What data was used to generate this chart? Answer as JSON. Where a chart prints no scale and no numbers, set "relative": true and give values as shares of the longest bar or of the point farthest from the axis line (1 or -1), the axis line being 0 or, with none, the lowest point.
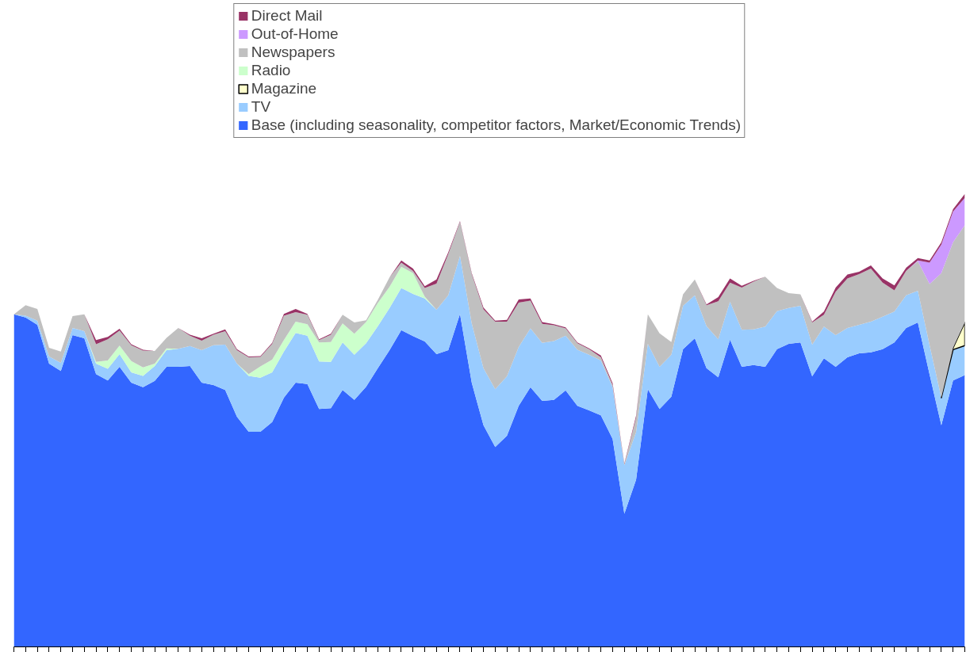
{
  "chart_data": {
    "type": "area",
    "stacked": true,
    "relative": true,
    "legend": "top",
    "grid": false,
    "categories": [
      null,
      null,
      null,
      null,
      null,
      null,
      null,
      null,
      null,
      null,
      null,
      null,
      null,
      null,
      null,
      null,
      null,
      null,
      null,
      null,
      null,
      null,
      null,
      null,
      null,
      null,
      null,
      null,
      null,
      null,
      null,
      null,
      null,
      null,
      null,
      null,
      null,
      null,
      null,
      null,
      null,
      null,
      null,
      null,
      null,
      null,
      null,
      null,
      null,
      null,
      null,
      null,
      null,
      null,
      null,
      null,
      null,
      null,
      null,
      null,
      null,
      null,
      null,
      null,
      null,
      null,
      null,
      null,
      null,
      null,
      null,
      null,
      null,
      null,
      null,
      null,
      null,
      null,
      null,
      null,
      null,
      null
    ],
    "series": [
      {
        "name": "Base (including seasonality, competitor factors, Market/Economic Trends)",
        "color": "#3366ff",
        "values": [
          0.734,
          0.727,
          0.711,
          0.625,
          0.609,
          0.688,
          0.681,
          0.602,
          0.588,
          0.618,
          0.583,
          0.573,
          0.587,
          0.618,
          0.618,
          0.62,
          0.583,
          0.578,
          0.567,
          0.508,
          0.475,
          0.475,
          0.496,
          0.55,
          0.583,
          0.58,
          0.525,
          0.527,
          0.567,
          0.545,
          0.574,
          0.615,
          0.655,
          0.699,
          0.686,
          0.674,
          0.646,
          0.655,
          0.735,
          0.583,
          0.489,
          0.441,
          0.466,
          0.532,
          0.573,
          0.543,
          0.545,
          0.566,
          0.532,
          0.522,
          0.511,
          0.459,
          0.294,
          0.369,
          0.569,
          0.525,
          0.552,
          0.657,
          0.681,
          0.615,
          0.595,
          0.678,
          0.618,
          0.622,
          0.618,
          0.657,
          0.669,
          0.672,
          0.597,
          0.637,
          0.618,
          0.639,
          0.648,
          0.65,
          0.657,
          0.672,
          0.704,
          0.716,
          0.601,
          0.489,
          0.588,
          0.6
        ]
      },
      {
        "name": "TV",
        "color": "#99ccff",
        "values": [
          0,
          0.004,
          0.009,
          0.016,
          0.018,
          0.016,
          0.016,
          0.023,
          0.026,
          0.028,
          0.023,
          0.025,
          0.033,
          0.037,
          0.04,
          0.044,
          0.072,
          0.088,
          0.1,
          0.117,
          0.123,
          0.119,
          0.11,
          0.102,
          0.11,
          0.107,
          0.105,
          0.102,
          0.105,
          0.1,
          0.096,
          0.093,
          0.093,
          0.093,
          0.093,
          0.095,
          0.098,
          0.121,
          0.128,
          0.131,
          0.126,
          0.128,
          0.131,
          0.13,
          0.13,
          0.128,
          0.13,
          0.121,
          0.124,
          0.123,
          0.121,
          0.114,
          0.107,
          0.105,
          0.1,
          0.093,
          0.093,
          0.096,
          0.095,
          0.093,
          0.084,
          0.084,
          0.082,
          0.079,
          0.089,
          0.084,
          0.079,
          0.081,
          0.07,
          0.07,
          0.07,
          0.065,
          0.063,
          0.068,
          0.072,
          0.068,
          0.072,
          0.07,
          0.065,
          0.061,
          0.068,
          0.065
        ]
      },
      {
        "name": "Magazine",
        "color": "#ffffcc",
        "values": [
          null,
          null,
          null,
          null,
          null,
          null,
          null,
          null,
          null,
          null,
          null,
          null,
          null,
          null,
          null,
          null,
          null,
          null,
          null,
          null,
          null,
          null,
          null,
          null,
          null,
          null,
          null,
          null,
          null,
          null,
          null,
          null,
          null,
          null,
          null,
          null,
          null,
          null,
          null,
          null,
          null,
          null,
          null,
          null,
          null,
          null,
          null,
          null,
          null,
          null,
          null,
          null,
          null,
          null,
          null,
          null,
          null,
          null,
          null,
          null,
          null,
          null,
          null,
          null,
          null,
          null,
          null,
          null,
          null,
          null,
          null,
          null,
          null,
          null,
          null,
          null,
          null,
          null,
          null,
          0,
          0.004,
          0.051
        ]
      },
      {
        "name": "Radio",
        "color": "#ccffcc",
        "values": [
          0,
          0,
          0,
          0,
          0,
          0,
          0,
          0.004,
          0.018,
          0.019,
          0.025,
          0.019,
          0.005,
          0.004,
          0,
          0,
          0,
          0,
          0,
          0,
          0.004,
          0.025,
          0.028,
          0.025,
          0.025,
          0.025,
          0.042,
          0.044,
          0.042,
          0.046,
          0.047,
          0.051,
          0.047,
          0.047,
          0.046,
          0.004,
          0,
          0,
          0,
          0,
          0,
          0,
          0,
          0,
          0,
          0,
          0,
          0,
          0,
          0,
          0,
          0,
          0,
          0,
          0,
          0,
          0,
          0,
          0,
          0,
          0,
          0,
          0,
          0,
          0,
          0,
          0,
          0,
          0,
          0,
          0,
          0,
          0,
          0,
          0,
          0,
          0,
          0,
          0,
          0,
          0,
          0
        ]
      },
      {
        "name": "Newspapers",
        "color": "#c0c0c0",
        "values": [
          0,
          0.023,
          0.026,
          0.019,
          0.025,
          0.026,
          0.037,
          0.039,
          0.047,
          0.033,
          0.035,
          0.037,
          0.028,
          0.023,
          0.046,
          0.023,
          0.021,
          0.023,
          0.03,
          0.03,
          0.037,
          0.021,
          0.035,
          0.054,
          0.021,
          0.021,
          0.005,
          0.016,
          0.019,
          0.025,
          0.004,
          0.007,
          0.021,
          0.009,
          0.005,
          0.019,
          0.058,
          0.091,
          0.075,
          0.109,
          0.13,
          0.149,
          0.121,
          0.098,
          0.061,
          0.042,
          0.035,
          0.016,
          0.014,
          0.012,
          0.007,
          0.005,
          0.002,
          0.032,
          0.065,
          0.074,
          0.028,
          0.025,
          0.035,
          0.046,
          0.084,
          0.042,
          0.093,
          0.105,
          0.11,
          0.051,
          0.033,
          0.025,
          0.049,
          0.026,
          0.096,
          0.109,
          0.112,
          0.117,
          0.075,
          0.047,
          0.054,
          0.065,
          0.135,
          0.275,
          0.233,
          0.215
        ]
      },
      {
        "name": "Out-of-Home",
        "color": "#cc99ff",
        "values": [
          0,
          0,
          0,
          0,
          0,
          0,
          0,
          0,
          0,
          0,
          0,
          0,
          0,
          0,
          0,
          0,
          0,
          0,
          0,
          0,
          0,
          0,
          0,
          0,
          0,
          0,
          0,
          0,
          0,
          0,
          0,
          0,
          0,
          0,
          0,
          0,
          0,
          0,
          0,
          0,
          0,
          0,
          0,
          0,
          0,
          0,
          0,
          0,
          0,
          0,
          0,
          0,
          0,
          0,
          0,
          0,
          0,
          0,
          0,
          0,
          0,
          0,
          0,
          0,
          0,
          0,
          0,
          0,
          0,
          0,
          0,
          0,
          0,
          0,
          0,
          0,
          0,
          0.002,
          0.047,
          0.063,
          0.068,
          0.06
        ]
      },
      {
        "name": "Direct Mail",
        "color": "#993366",
        "values": [
          0,
          0,
          0,
          0,
          0,
          0,
          0,
          0.009,
          0.005,
          0.004,
          0.002,
          0.002,
          0,
          0,
          0,
          0.002,
          0.005,
          0.002,
          0.004,
          0.002,
          0.002,
          0.002,
          0.002,
          0.004,
          0.007,
          0.002,
          0.002,
          0.002,
          0,
          0,
          0,
          0,
          0,
          0.005,
          0.005,
          0.004,
          0.009,
          0.004,
          0.002,
          0.002,
          0.004,
          0.002,
          0.004,
          0.007,
          0.005,
          0.004,
          0.002,
          0.002,
          0.002,
          0.002,
          0.004,
          0.004,
          0.002,
          0.004,
          0,
          0,
          0,
          0,
          0,
          0.002,
          0.009,
          0.009,
          0.004,
          0.002,
          0,
          0,
          0,
          0,
          0.002,
          0.007,
          0.009,
          0.009,
          0.005,
          0.007,
          0.009,
          0.011,
          0.007,
          0.005,
          0.005,
          0.005,
          0.005,
          0.009
        ]
      }
    ]
  }
}
